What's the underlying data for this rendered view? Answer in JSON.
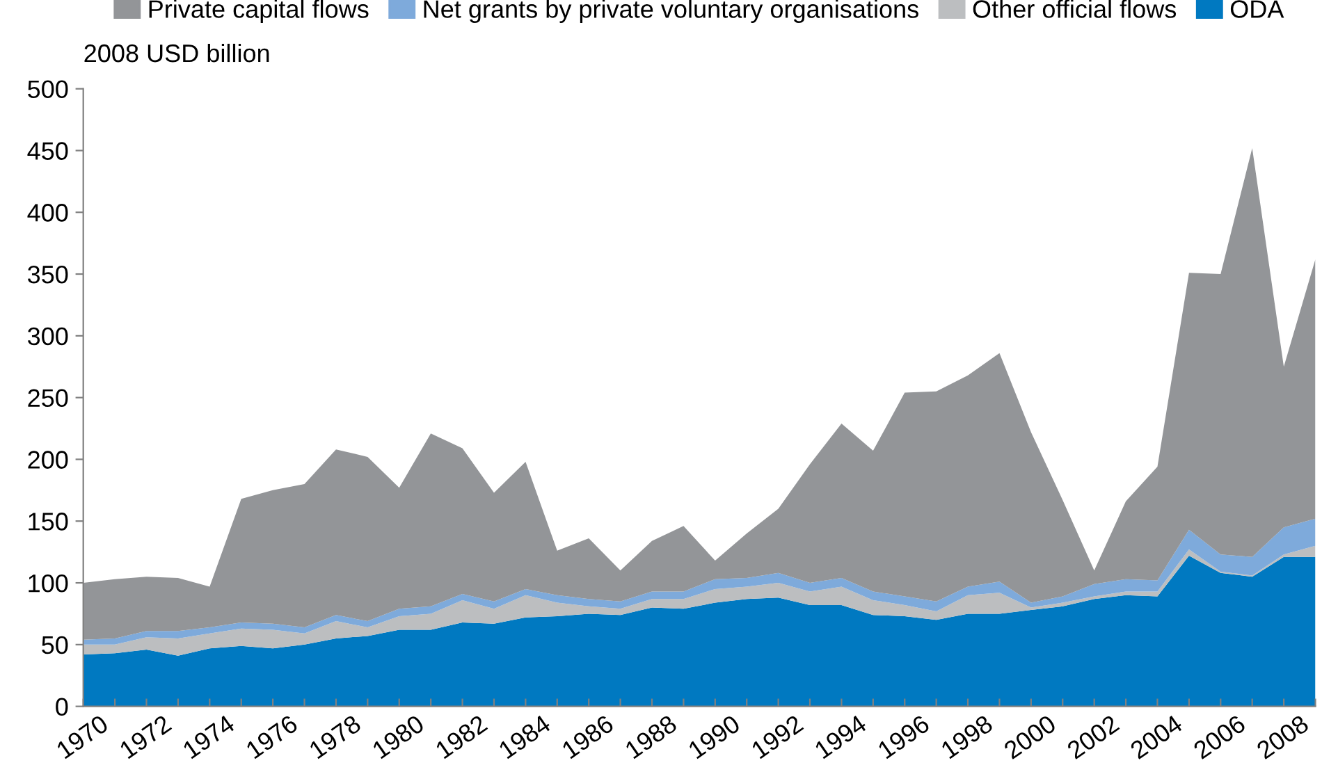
{
  "chart_data": {
    "type": "area",
    "stacked": true,
    "ylabel": "2008 USD billion",
    "x": [
      1970,
      1971,
      1972,
      1973,
      1974,
      1975,
      1976,
      1977,
      1978,
      1979,
      1980,
      1981,
      1982,
      1983,
      1984,
      1985,
      1986,
      1987,
      1988,
      1989,
      1990,
      1991,
      1992,
      1993,
      1994,
      1995,
      1996,
      1997,
      1998,
      1999,
      2000,
      2001,
      2002,
      2003,
      2004,
      2005,
      2006,
      2007,
      2008,
      2009
    ],
    "series": [
      {
        "name": "ODA",
        "color": "#0079c1",
        "values": [
          42,
          43,
          46,
          41,
          47,
          49,
          47,
          50,
          55,
          57,
          62,
          62,
          68,
          67,
          72,
          73,
          75,
          74,
          80,
          79,
          84,
          87,
          88,
          82,
          82,
          74,
          73,
          70,
          75,
          75,
          78,
          81,
          87,
          90,
          89,
          122,
          108,
          105,
          121,
          121
        ]
      },
      {
        "name": "Other official flows",
        "color": "#bcbec0",
        "values": [
          8,
          7,
          10,
          14,
          12,
          14,
          15,
          9,
          14,
          7,
          11,
          13,
          18,
          12,
          18,
          11,
          6,
          5,
          7,
          8,
          11,
          10,
          12,
          11,
          15,
          12,
          9,
          7,
          15,
          17,
          2,
          3,
          2,
          3,
          4,
          5,
          1,
          1,
          2,
          9
        ]
      },
      {
        "name": "Net grants by private voluntary organisations",
        "color": "#7eaadb",
        "values": [
          4,
          5,
          5,
          6,
          5,
          5,
          5,
          5,
          5,
          5,
          6,
          6,
          5,
          6,
          5,
          6,
          6,
          6,
          6,
          6,
          8,
          7,
          8,
          7,
          7,
          7,
          7,
          8,
          7,
          9,
          4,
          5,
          10,
          10,
          9,
          16,
          14,
          15,
          22,
          22
        ]
      },
      {
        "name": "Private capital flows",
        "color": "#939598",
        "values": [
          46,
          48,
          44,
          43,
          33,
          100,
          108,
          116,
          134,
          133,
          98,
          140,
          118,
          88,
          103,
          36,
          49,
          25,
          41,
          53,
          15,
          36,
          52,
          96,
          125,
          114,
          165,
          170,
          171,
          185,
          138,
          78,
          11,
          63,
          92,
          208,
          227,
          331,
          130,
          210
        ]
      }
    ],
    "xlim": [
      1970,
      2009
    ],
    "xticks": [
      1970,
      {
        "value": 1971,
        "label": null
      },
      1972,
      {
        "value": 1973,
        "label": null
      },
      1974,
      {
        "value": 1975,
        "label": null
      },
      1976,
      {
        "value": 1977,
        "label": null
      },
      1978,
      {
        "value": 1979,
        "label": null
      },
      1980,
      {
        "value": 1981,
        "label": null
      },
      1982,
      {
        "value": 1983,
        "label": null
      },
      1984,
      {
        "value": 1985,
        "label": null
      },
      1986,
      {
        "value": 1987,
        "label": null
      },
      1988,
      {
        "value": 1989,
        "label": null
      },
      1990,
      {
        "value": 1991,
        "label": null
      },
      1992,
      {
        "value": 1993,
        "label": null
      },
      1994,
      {
        "value": 1995,
        "label": null
      },
      1996,
      {
        "value": 1997,
        "label": null
      },
      1998,
      {
        "value": 1999,
        "label": null
      },
      2000,
      {
        "value": 2001,
        "label": null
      },
      2002,
      {
        "value": 2003,
        "label": null
      },
      2004,
      {
        "value": 2005,
        "label": null
      },
      2006,
      {
        "value": 2007,
        "label": null
      },
      2008,
      {
        "value": 2009,
        "label": null
      }
    ],
    "ylim": [
      0,
      500
    ],
    "yticks": [
      0,
      50,
      100,
      150,
      200,
      250,
      300,
      350,
      400,
      450,
      500
    ],
    "grid": false,
    "legend": "top"
  }
}
